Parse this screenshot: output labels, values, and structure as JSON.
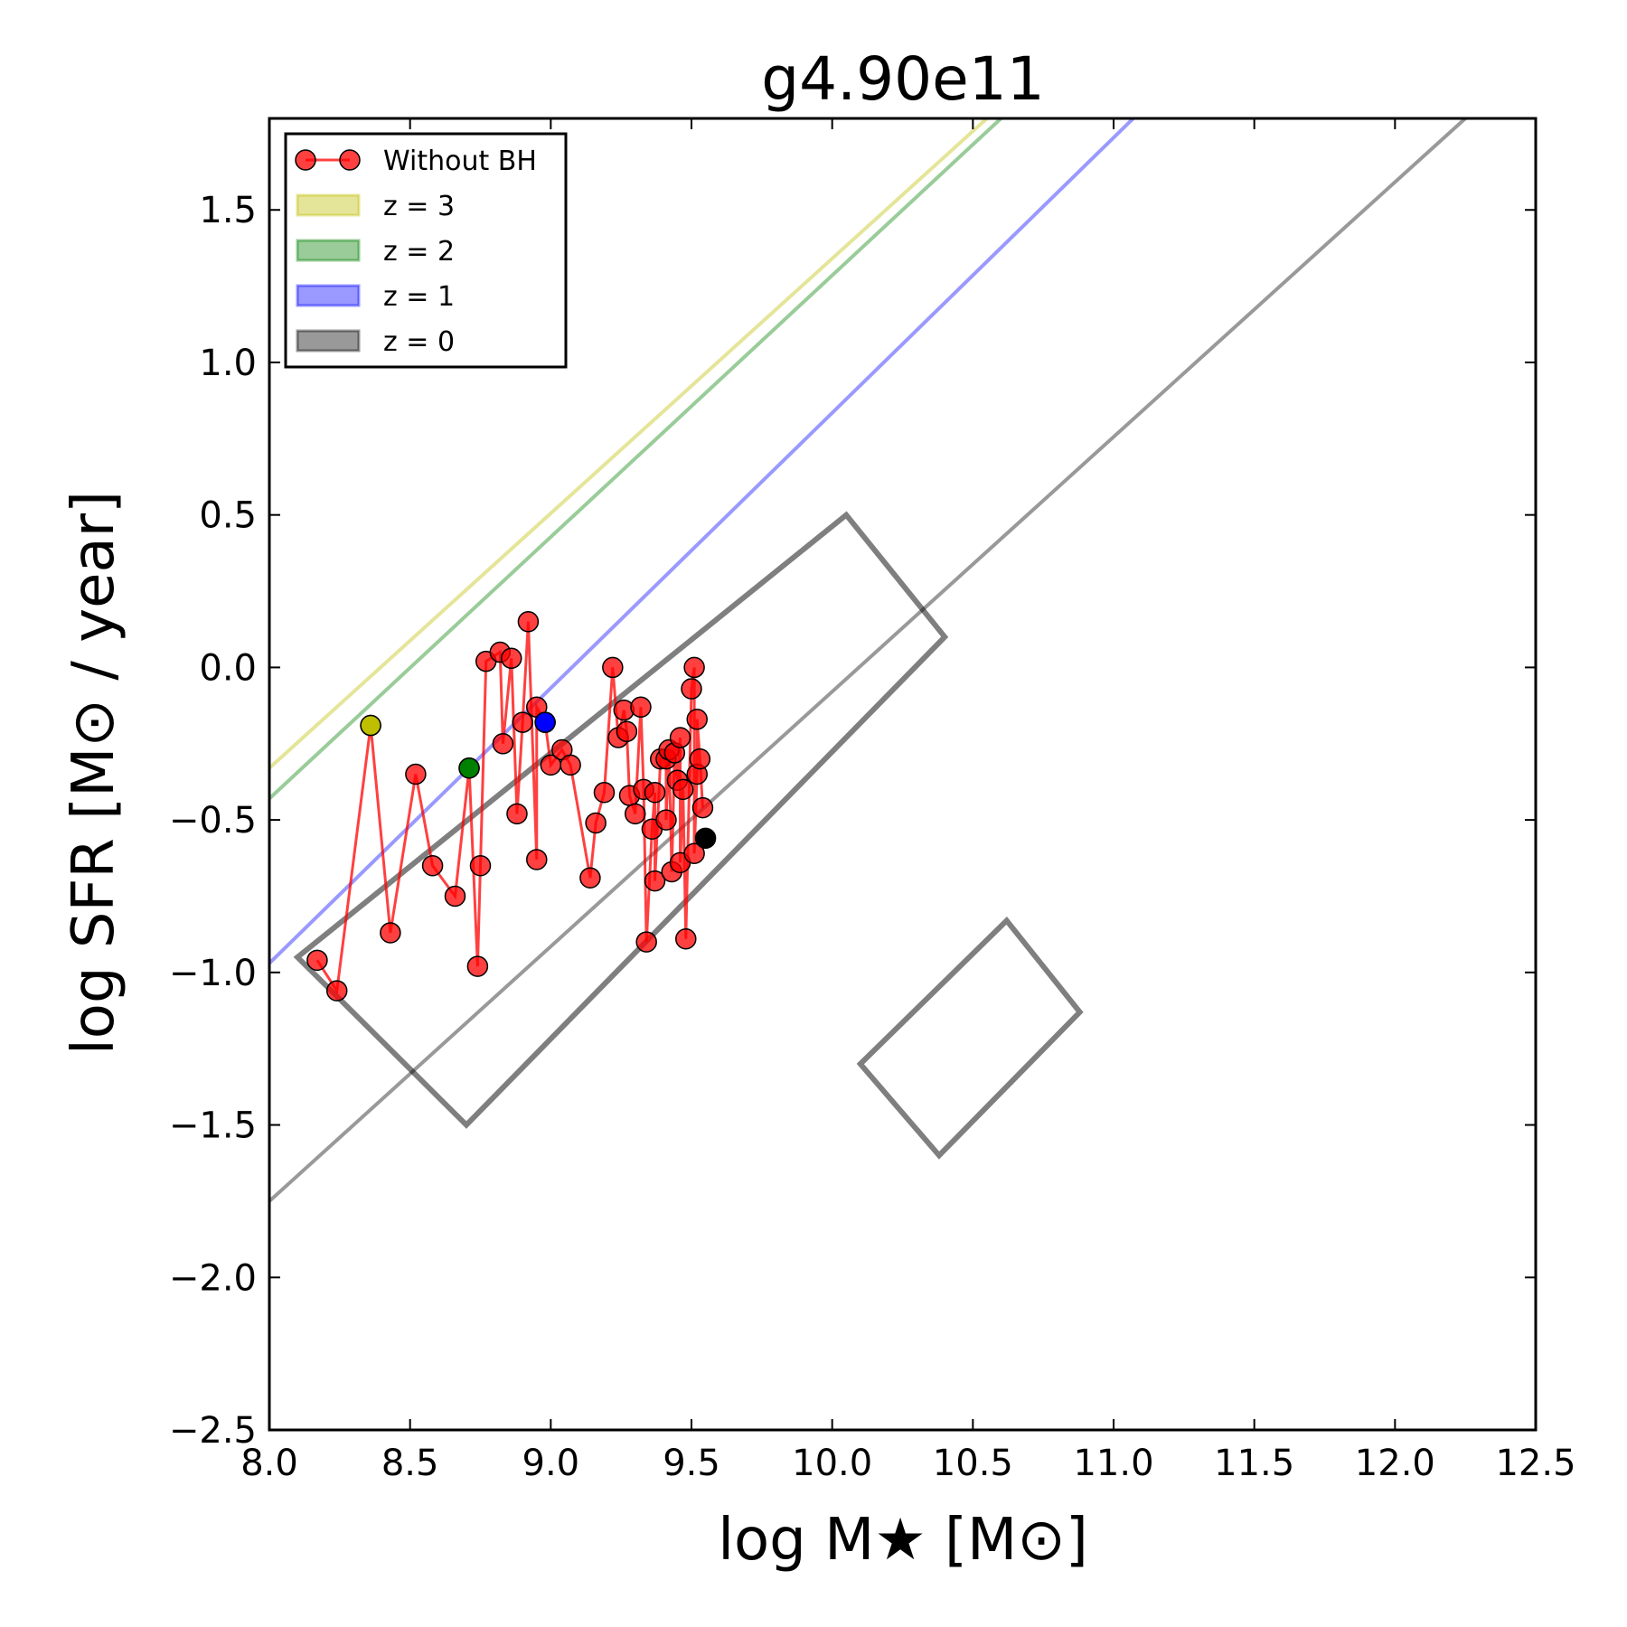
{
  "chart_data": {
    "type": "scatter",
    "title": "g4.90e11",
    "xlabel": "log M★ [M⊙]",
    "ylabel": "log SFR [M⊙ / year]",
    "xlim": [
      8.0,
      12.5
    ],
    "ylim": [
      -2.5,
      1.8
    ],
    "xticks": [
      "8.0",
      "8.5",
      "9.0",
      "9.5",
      "10.0",
      "10.5",
      "11.0",
      "11.5",
      "12.0",
      "12.5"
    ],
    "yticks": [
      "−2.5",
      "−2.0",
      "−1.5",
      "−1.0",
      "−0.5",
      "0.0",
      "0.5",
      "1.0",
      "1.5"
    ],
    "grid": false,
    "legend_position": "top-left",
    "legend": [
      {
        "label": "Without BH",
        "kind": "line-marker",
        "color": "#ff0000"
      },
      {
        "label": "z = 3",
        "kind": "patch",
        "color": "#bfbf00"
      },
      {
        "label": "z = 2",
        "kind": "patch",
        "color": "#008000"
      },
      {
        "label": "z = 1",
        "kind": "patch",
        "color": "#0000ff"
      },
      {
        "label": "z = 0",
        "kind": "patch",
        "color": "#000000"
      }
    ],
    "main_sequence_lines": [
      {
        "z": 3,
        "color": "#bfbf00",
        "points": [
          [
            8.0,
            -0.33
          ],
          [
            10.55,
            1.8
          ]
        ]
      },
      {
        "z": 2,
        "color": "#008000",
        "points": [
          [
            8.0,
            -0.43
          ],
          [
            10.6,
            1.8
          ]
        ]
      },
      {
        "z": 1,
        "color": "#0000ff",
        "points": [
          [
            8.0,
            -0.97
          ],
          [
            11.07,
            1.8
          ]
        ]
      },
      {
        "z": 0,
        "color": "#000000",
        "points": [
          [
            8.0,
            -1.75
          ],
          [
            12.25,
            1.8
          ]
        ]
      }
    ],
    "boxes": [
      {
        "color": "#000000",
        "points": [
          [
            8.1,
            -0.95
          ],
          [
            10.05,
            0.5
          ],
          [
            10.4,
            0.1
          ],
          [
            8.7,
            -1.5
          ]
        ]
      },
      {
        "color": "#000000",
        "points": [
          [
            10.1,
            -1.3
          ],
          [
            10.62,
            -0.83
          ],
          [
            10.88,
            -1.13
          ],
          [
            10.38,
            -1.6
          ]
        ]
      }
    ],
    "series": [
      {
        "name": "Without BH",
        "color": "#ff0000",
        "points": [
          [
            8.17,
            -0.96
          ],
          [
            8.24,
            -1.06
          ],
          [
            8.36,
            -0.19
          ],
          [
            8.43,
            -0.87
          ],
          [
            8.52,
            -0.35
          ],
          [
            8.58,
            -0.65
          ],
          [
            8.66,
            -0.75
          ],
          [
            8.71,
            -0.33
          ],
          [
            8.74,
            -0.98
          ],
          [
            8.75,
            -0.65
          ],
          [
            8.77,
            0.02
          ],
          [
            8.82,
            0.05
          ],
          [
            8.83,
            -0.25
          ],
          [
            8.86,
            0.03
          ],
          [
            8.88,
            -0.48
          ],
          [
            8.9,
            -0.18
          ],
          [
            8.92,
            0.15
          ],
          [
            8.95,
            -0.63
          ],
          [
            8.95,
            -0.13
          ],
          [
            8.98,
            -0.18
          ],
          [
            9.0,
            -0.32
          ],
          [
            9.04,
            -0.27
          ],
          [
            9.07,
            -0.32
          ],
          [
            9.14,
            -0.69
          ],
          [
            9.16,
            -0.51
          ],
          [
            9.19,
            -0.41
          ],
          [
            9.22,
            0.0
          ],
          [
            9.24,
            -0.23
          ],
          [
            9.26,
            -0.14
          ],
          [
            9.27,
            -0.21
          ],
          [
            9.28,
            -0.42
          ],
          [
            9.3,
            -0.48
          ],
          [
            9.32,
            -0.13
          ],
          [
            9.33,
            -0.4
          ],
          [
            9.34,
            -0.9
          ],
          [
            9.36,
            -0.53
          ],
          [
            9.37,
            -0.41
          ],
          [
            9.37,
            -0.7
          ],
          [
            9.39,
            -0.3
          ],
          [
            9.41,
            -0.3
          ],
          [
            9.41,
            -0.5
          ],
          [
            9.42,
            -0.27
          ],
          [
            9.43,
            -0.67
          ],
          [
            9.44,
            -0.28
          ],
          [
            9.45,
            -0.37
          ],
          [
            9.46,
            -0.23
          ],
          [
            9.46,
            -0.64
          ],
          [
            9.47,
            -0.4
          ],
          [
            9.48,
            -0.89
          ],
          [
            9.5,
            -0.07
          ],
          [
            9.51,
            0.0
          ],
          [
            9.51,
            -0.61
          ],
          [
            9.52,
            -0.35
          ],
          [
            9.52,
            -0.17
          ],
          [
            9.53,
            -0.3
          ],
          [
            9.54,
            -0.46
          ]
        ]
      }
    ],
    "highlighted_points": [
      {
        "z": 3,
        "color": "#bfbf00",
        "point": [
          8.36,
          -0.19
        ]
      },
      {
        "z": 2,
        "color": "#008000",
        "point": [
          8.71,
          -0.33
        ]
      },
      {
        "z": 1,
        "color": "#0000ff",
        "point": [
          8.98,
          -0.18
        ]
      },
      {
        "z": 0,
        "color": "#000000",
        "point": [
          9.55,
          -0.56
        ]
      }
    ]
  }
}
